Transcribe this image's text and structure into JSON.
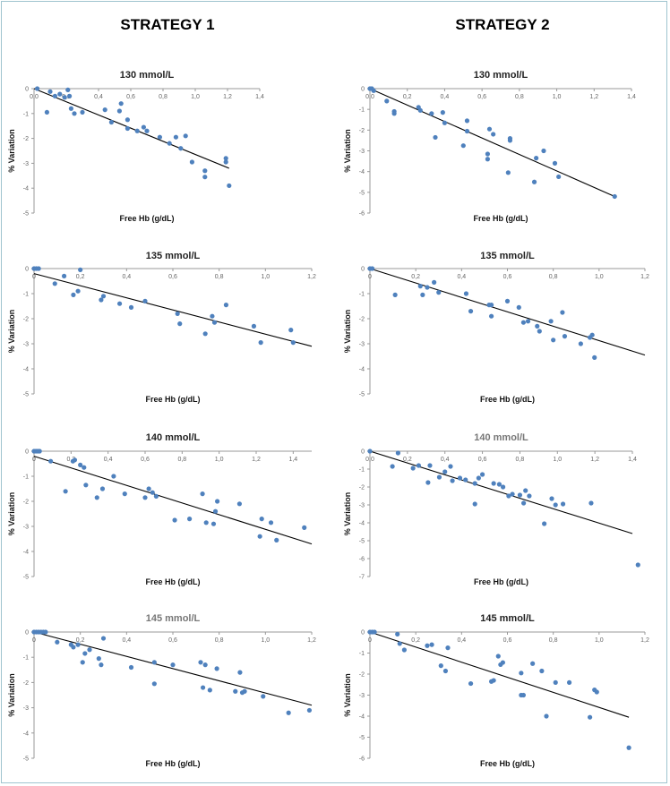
{
  "headings": {
    "strategy1": "STRATEGY 1",
    "strategy2": "STRATEGY 2"
  },
  "colors": {
    "point": "#4f81bd",
    "line": "#000000",
    "axis": "#999999",
    "frame": "#9fc4cf"
  },
  "chart_data": [
    {
      "id": "s1-130",
      "type": "scatter",
      "strategy": "STRATEGY 1",
      "title": "130 mmol/L",
      "xlabel": "Free Hb (g/dL)",
      "ylabel": "% Variation",
      "xlim": [
        0,
        1.4
      ],
      "ylim": [
        -5,
        0
      ],
      "xticks": [
        "0,0",
        "0,2",
        "0,4",
        "0,6",
        "0,8",
        "1,0",
        "1,2",
        "1,4"
      ],
      "yticks": [
        "0",
        "-1",
        "-2",
        "-3",
        "-4",
        "-5"
      ],
      "points": [
        [
          0.02,
          0.0
        ],
        [
          0.08,
          -0.95
        ],
        [
          0.1,
          -0.12
        ],
        [
          0.13,
          -0.3
        ],
        [
          0.16,
          -0.22
        ],
        [
          0.19,
          -0.35
        ],
        [
          0.21,
          -0.05
        ],
        [
          0.22,
          -0.3
        ],
        [
          0.23,
          -0.8
        ],
        [
          0.25,
          -1.0
        ],
        [
          0.3,
          -0.95
        ],
        [
          0.44,
          -0.85
        ],
        [
          0.48,
          -1.35
        ],
        [
          0.53,
          -0.9
        ],
        [
          0.54,
          -0.6
        ],
        [
          0.58,
          -1.25
        ],
        [
          0.58,
          -1.6
        ],
        [
          0.64,
          -1.7
        ],
        [
          0.68,
          -1.55
        ],
        [
          0.7,
          -1.7
        ],
        [
          0.78,
          -1.95
        ],
        [
          0.84,
          -2.2
        ],
        [
          0.88,
          -1.95
        ],
        [
          0.91,
          -2.4
        ],
        [
          0.94,
          -1.9
        ],
        [
          0.98,
          -2.95
        ],
        [
          1.06,
          -3.3
        ],
        [
          1.06,
          -3.55
        ],
        [
          1.19,
          -2.8
        ],
        [
          1.19,
          -2.95
        ],
        [
          1.21,
          -3.9
        ]
      ],
      "trendline": [
        [
          0.0,
          0.0
        ],
        [
          1.21,
          -3.2
        ]
      ]
    },
    {
      "id": "s2-130",
      "type": "scatter",
      "strategy": "STRATEGY 2",
      "title": "130 mmol/L",
      "xlabel": "Free Hb (g/dL)",
      "ylabel": "% Variation",
      "xlim": [
        0,
        1.4
      ],
      "ylim": [
        -6,
        0
      ],
      "xticks": [
        "0,0",
        "0,2",
        "0,4",
        "0,6",
        "0,8",
        "1,0",
        "1,2",
        "1,4"
      ],
      "yticks": [
        "0",
        "-1",
        "-2",
        "-3",
        "-4",
        "-5",
        "-6"
      ],
      "points": [
        [
          0.0,
          0.0
        ],
        [
          0.01,
          0.0
        ],
        [
          0.02,
          -0.1
        ],
        [
          0.09,
          -0.6
        ],
        [
          0.13,
          -1.1
        ],
        [
          0.13,
          -1.2
        ],
        [
          0.26,
          -0.9
        ],
        [
          0.27,
          -1.05
        ],
        [
          0.33,
          -1.2
        ],
        [
          0.35,
          -2.35
        ],
        [
          0.39,
          -1.15
        ],
        [
          0.4,
          -1.65
        ],
        [
          0.5,
          -2.75
        ],
        [
          0.52,
          -1.55
        ],
        [
          0.52,
          -2.05
        ],
        [
          0.63,
          -3.15
        ],
        [
          0.63,
          -3.4
        ],
        [
          0.64,
          -1.95
        ],
        [
          0.66,
          -2.2
        ],
        [
          0.74,
          -4.05
        ],
        [
          0.75,
          -2.5
        ],
        [
          0.75,
          -2.4
        ],
        [
          0.88,
          -4.5
        ],
        [
          0.89,
          -3.35
        ],
        [
          0.93,
          -3.0
        ],
        [
          0.99,
          -3.6
        ],
        [
          1.01,
          -4.25
        ],
        [
          1.31,
          -5.2
        ]
      ],
      "trendline": [
        [
          0.0,
          0.0
        ],
        [
          1.31,
          -5.2
        ]
      ]
    },
    {
      "id": "s1-135",
      "type": "scatter",
      "strategy": "STRATEGY 1",
      "title": "135 mmol/L",
      "xlabel": "Free Hb (g/dL)",
      "ylabel": "% Variation",
      "xlim": [
        0,
        1.2
      ],
      "ylim": [
        -5,
        0
      ],
      "xticks": [
        "0",
        "0,2",
        "0,4",
        "0,6",
        "0,8",
        "1,0",
        "1,2"
      ],
      "yticks": [
        "0",
        "-1",
        "-2",
        "-3",
        "-4",
        "-5"
      ],
      "points": [
        [
          0.0,
          0.0
        ],
        [
          0.01,
          0.0
        ],
        [
          0.02,
          0.0
        ],
        [
          0.09,
          -0.6
        ],
        [
          0.13,
          -0.3
        ],
        [
          0.17,
          -1.05
        ],
        [
          0.19,
          -0.9
        ],
        [
          0.2,
          -0.05
        ],
        [
          0.29,
          -1.25
        ],
        [
          0.3,
          -1.1
        ],
        [
          0.37,
          -1.4
        ],
        [
          0.42,
          -1.55
        ],
        [
          0.48,
          -1.3
        ],
        [
          0.62,
          -1.8
        ],
        [
          0.63,
          -2.2
        ],
        [
          0.74,
          -2.6
        ],
        [
          0.77,
          -1.9
        ],
        [
          0.78,
          -2.15
        ],
        [
          0.83,
          -1.45
        ],
        [
          0.95,
          -2.3
        ],
        [
          0.98,
          -2.95
        ],
        [
          1.11,
          -2.45
        ],
        [
          1.12,
          -2.95
        ]
      ],
      "trendline": [
        [
          0.0,
          -0.2
        ],
        [
          1.2,
          -3.1
        ]
      ]
    },
    {
      "id": "s2-135",
      "type": "scatter",
      "strategy": "STRATEGY 2",
      "title": "135 mmol/L",
      "xlabel": "Free Hb (g/dL)",
      "ylabel": "% Variation",
      "xlim": [
        0,
        1.2
      ],
      "ylim": [
        -5,
        0
      ],
      "xticks": [
        "0",
        "0,2",
        "0,4",
        "0,6",
        "0,8",
        "1,0",
        "1,2"
      ],
      "yticks": [
        "0",
        "-1",
        "-2",
        "-3",
        "-4",
        "-5"
      ],
      "points": [
        [
          0.0,
          0.0
        ],
        [
          0.01,
          0.0
        ],
        [
          0.11,
          -1.05
        ],
        [
          0.22,
          -0.7
        ],
        [
          0.23,
          -1.05
        ],
        [
          0.25,
          -0.75
        ],
        [
          0.28,
          -0.55
        ],
        [
          0.3,
          -0.95
        ],
        [
          0.42,
          -1.0
        ],
        [
          0.44,
          -1.7
        ],
        [
          0.52,
          -1.45
        ],
        [
          0.53,
          -1.9
        ],
        [
          0.53,
          -1.45
        ],
        [
          0.6,
          -1.3
        ],
        [
          0.65,
          -1.55
        ],
        [
          0.67,
          -2.15
        ],
        [
          0.69,
          -2.1
        ],
        [
          0.73,
          -2.3
        ],
        [
          0.74,
          -2.5
        ],
        [
          0.79,
          -2.1
        ],
        [
          0.8,
          -2.85
        ],
        [
          0.84,
          -1.75
        ],
        [
          0.85,
          -2.7
        ],
        [
          0.92,
          -3.0
        ],
        [
          0.96,
          -2.75
        ],
        [
          0.97,
          -2.65
        ],
        [
          0.98,
          -3.55
        ]
      ],
      "trendline": [
        [
          0.0,
          0.0
        ],
        [
          1.2,
          -3.45
        ]
      ]
    },
    {
      "id": "s1-140",
      "type": "scatter",
      "strategy": "STRATEGY 1",
      "title": "140 mmol/L",
      "xlabel": "Free Hb (g/dL)",
      "ylabel": "% Variation",
      "xlim": [
        0,
        1.5
      ],
      "ylim": [
        -5,
        0
      ],
      "xticks": [
        "0",
        "0,2",
        "0,4",
        "0,6",
        "0,8",
        "1,0",
        "1,2",
        "1,4"
      ],
      "yticks": [
        "0",
        "-1",
        "-2",
        "-3",
        "-4",
        "-5"
      ],
      "points": [
        [
          0.0,
          0.0
        ],
        [
          0.01,
          0.0
        ],
        [
          0.02,
          0.0
        ],
        [
          0.03,
          0.0
        ],
        [
          0.09,
          -0.4
        ],
        [
          0.17,
          -1.6
        ],
        [
          0.21,
          -0.4
        ],
        [
          0.22,
          -0.35
        ],
        [
          0.25,
          -0.55
        ],
        [
          0.27,
          -0.65
        ],
        [
          0.28,
          -1.35
        ],
        [
          0.34,
          -1.85
        ],
        [
          0.37,
          -1.5
        ],
        [
          0.43,
          -1.0
        ],
        [
          0.49,
          -1.7
        ],
        [
          0.6,
          -1.85
        ],
        [
          0.62,
          -1.5
        ],
        [
          0.64,
          -1.65
        ],
        [
          0.66,
          -1.8
        ],
        [
          0.76,
          -2.75
        ],
        [
          0.84,
          -2.7
        ],
        [
          0.91,
          -1.7
        ],
        [
          0.93,
          -2.85
        ],
        [
          0.97,
          -2.9
        ],
        [
          0.98,
          -2.4
        ],
        [
          0.99,
          -2.0
        ],
        [
          1.11,
          -2.1
        ],
        [
          1.22,
          -3.4
        ],
        [
          1.23,
          -2.7
        ],
        [
          1.28,
          -2.85
        ],
        [
          1.31,
          -3.55
        ],
        [
          1.46,
          -3.05
        ]
      ],
      "trendline": [
        [
          0.0,
          -0.2
        ],
        [
          1.5,
          -3.7
        ]
      ]
    },
    {
      "id": "s2-140",
      "type": "scatter",
      "strategy": "STRATEGY 2",
      "title": "140 mmol/L",
      "title_grey": true,
      "xlabel": "Free Hb (g/dL)",
      "ylabel": "% Variation",
      "xlim": [
        0,
        1.4
      ],
      "ylim": [
        -7,
        0
      ],
      "xticks": [
        "0,0",
        "0,2",
        "0,4",
        "0,6",
        "0,8",
        "1,0",
        "1,2",
        "1,4"
      ],
      "yticks": [
        "0",
        "-1",
        "-2",
        "-3",
        "-4",
        "-5",
        "-6",
        "-7"
      ],
      "points": [
        [
          0.0,
          0.0
        ],
        [
          0.12,
          -0.85
        ],
        [
          0.15,
          -0.1
        ],
        [
          0.23,
          -0.95
        ],
        [
          0.26,
          -0.8
        ],
        [
          0.31,
          -1.75
        ],
        [
          0.32,
          -0.8
        ],
        [
          0.37,
          -1.45
        ],
        [
          0.4,
          -1.15
        ],
        [
          0.43,
          -0.85
        ],
        [
          0.44,
          -1.65
        ],
        [
          0.48,
          -1.5
        ],
        [
          0.51,
          -1.6
        ],
        [
          0.56,
          -1.8
        ],
        [
          0.56,
          -2.95
        ],
        [
          0.58,
          -1.5
        ],
        [
          0.6,
          -1.3
        ],
        [
          0.66,
          -1.8
        ],
        [
          0.69,
          -1.85
        ],
        [
          0.71,
          -2.0
        ],
        [
          0.74,
          -2.5
        ],
        [
          0.76,
          -2.4
        ],
        [
          0.8,
          -2.45
        ],
        [
          0.82,
          -2.9
        ],
        [
          0.83,
          -2.2
        ],
        [
          0.85,
          -2.5
        ],
        [
          0.93,
          -4.05
        ],
        [
          0.97,
          -2.65
        ],
        [
          0.99,
          -3.0
        ],
        [
          1.03,
          -2.95
        ],
        [
          1.18,
          -2.9
        ],
        [
          1.43,
          -6.35
        ]
      ],
      "trendline": [
        [
          0.0,
          0.0
        ],
        [
          1.4,
          -4.6
        ]
      ]
    },
    {
      "id": "s1-145",
      "type": "scatter",
      "strategy": "STRATEGY 1",
      "title": "145 mmol/L",
      "title_grey": true,
      "xlabel": "Free Hb (g/dL)",
      "ylabel": "% Variation",
      "xlim": [
        0,
        1.2
      ],
      "ylim": [
        -5,
        0
      ],
      "xticks": [
        "0",
        "0,2",
        "0,4",
        "0,6",
        "0,8",
        "1,0",
        "1,2"
      ],
      "yticks": [
        "0",
        "-1",
        "-2",
        "-3",
        "-4",
        "-5"
      ],
      "points": [
        [
          0.0,
          0.0
        ],
        [
          0.01,
          0.0
        ],
        [
          0.02,
          0.0
        ],
        [
          0.03,
          0.0
        ],
        [
          0.04,
          0.0
        ],
        [
          0.05,
          0.0
        ],
        [
          0.1,
          -0.4
        ],
        [
          0.16,
          -0.5
        ],
        [
          0.17,
          -0.6
        ],
        [
          0.19,
          -0.5
        ],
        [
          0.21,
          -1.2
        ],
        [
          0.22,
          -0.85
        ],
        [
          0.24,
          -0.7
        ],
        [
          0.28,
          -1.05
        ],
        [
          0.29,
          -1.3
        ],
        [
          0.3,
          -0.25
        ],
        [
          0.42,
          -1.4
        ],
        [
          0.52,
          -1.2
        ],
        [
          0.52,
          -2.05
        ],
        [
          0.6,
          -1.3
        ],
        [
          0.72,
          -1.2
        ],
        [
          0.73,
          -2.2
        ],
        [
          0.74,
          -1.3
        ],
        [
          0.76,
          -2.3
        ],
        [
          0.79,
          -1.45
        ],
        [
          0.87,
          -2.35
        ],
        [
          0.89,
          -1.6
        ],
        [
          0.9,
          -2.4
        ],
        [
          0.91,
          -2.35
        ],
        [
          0.99,
          -2.55
        ],
        [
          1.1,
          -3.2
        ],
        [
          1.19,
          -3.1
        ]
      ],
      "trendline": [
        [
          0.0,
          0.0
        ],
        [
          1.2,
          -2.9
        ]
      ]
    },
    {
      "id": "s2-145",
      "type": "scatter",
      "strategy": "STRATEGY 2",
      "title": "145 mmol/L",
      "xlabel": "Free Hb (g/dL)",
      "ylabel": "% Variation",
      "xlim": [
        0,
        1.2
      ],
      "ylim": [
        -6,
        0
      ],
      "xticks": [
        "0",
        "0,2",
        "0,4",
        "0,6",
        "0,8",
        "1,0",
        "1,2"
      ],
      "yticks": [
        "0",
        "-1",
        "-2",
        "-3",
        "-4",
        "-5",
        "-6"
      ],
      "points": [
        [
          0.0,
          0.0
        ],
        [
          0.01,
          0.0
        ],
        [
          0.02,
          0.0
        ],
        [
          0.12,
          -0.1
        ],
        [
          0.13,
          -0.55
        ],
        [
          0.15,
          -0.85
        ],
        [
          0.25,
          -0.65
        ],
        [
          0.27,
          -0.6
        ],
        [
          0.31,
          -1.6
        ],
        [
          0.33,
          -1.85
        ],
        [
          0.34,
          -0.75
        ],
        [
          0.44,
          -2.45
        ],
        [
          0.53,
          -2.35
        ],
        [
          0.54,
          -2.3
        ],
        [
          0.56,
          -1.15
        ],
        [
          0.57,
          -1.55
        ],
        [
          0.58,
          -1.45
        ],
        [
          0.66,
          -1.95
        ],
        [
          0.66,
          -3.0
        ],
        [
          0.67,
          -3.0
        ],
        [
          0.71,
          -1.5
        ],
        [
          0.75,
          -1.85
        ],
        [
          0.77,
          -4.0
        ],
        [
          0.81,
          -2.4
        ],
        [
          0.87,
          -2.4
        ],
        [
          0.96,
          -4.05
        ],
        [
          0.98,
          -2.75
        ],
        [
          0.99,
          -2.85
        ],
        [
          1.13,
          -5.5
        ]
      ],
      "trendline": [
        [
          0.0,
          0.0
        ],
        [
          1.13,
          -4.05
        ]
      ]
    }
  ]
}
